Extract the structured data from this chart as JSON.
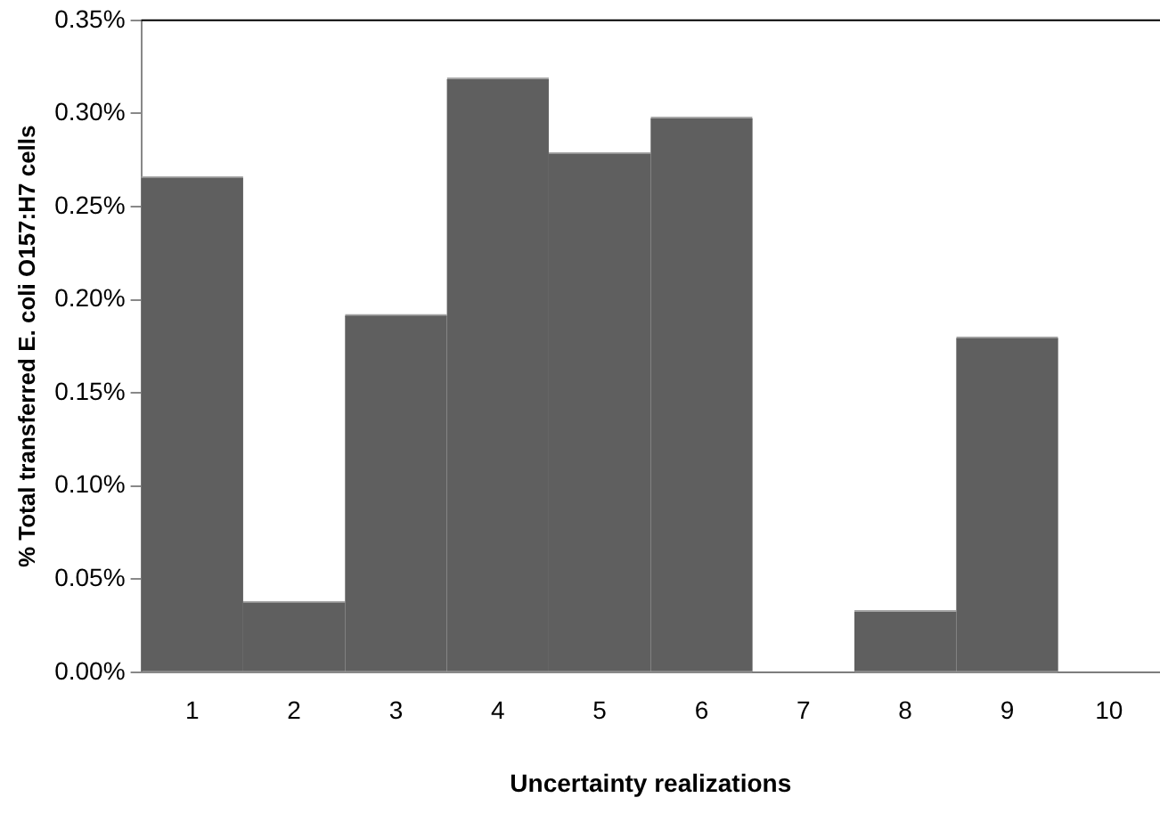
{
  "chart_data": {
    "type": "bar",
    "xlabel": "Uncertainty realizations",
    "ylabel": "% Total transferred E. coli O157:H7 cells",
    "categories": [
      "1",
      "2",
      "3",
      "4",
      "5",
      "6",
      "7",
      "8",
      "9",
      "10"
    ],
    "values": [
      0.266,
      0.038,
      0.192,
      0.319,
      0.279,
      0.298,
      0,
      0.033,
      0.18,
      0
    ],
    "color": "#5f5f5f",
    "ylim": [
      0,
      0.35
    ],
    "yticks": [
      {
        "value": 0,
        "label": "0.00%"
      },
      {
        "value": 0.05,
        "label": "0.05%"
      },
      {
        "value": 0.1,
        "label": "0.10%"
      },
      {
        "value": 0.15,
        "label": "0.15%"
      },
      {
        "value": 0.2,
        "label": "0.20%"
      },
      {
        "value": 0.25,
        "label": "0.25%"
      },
      {
        "value": 0.3,
        "label": "0.30%"
      },
      {
        "value": 0.35,
        "label": "0.35%"
      }
    ],
    "grid": false,
    "legend": false
  }
}
